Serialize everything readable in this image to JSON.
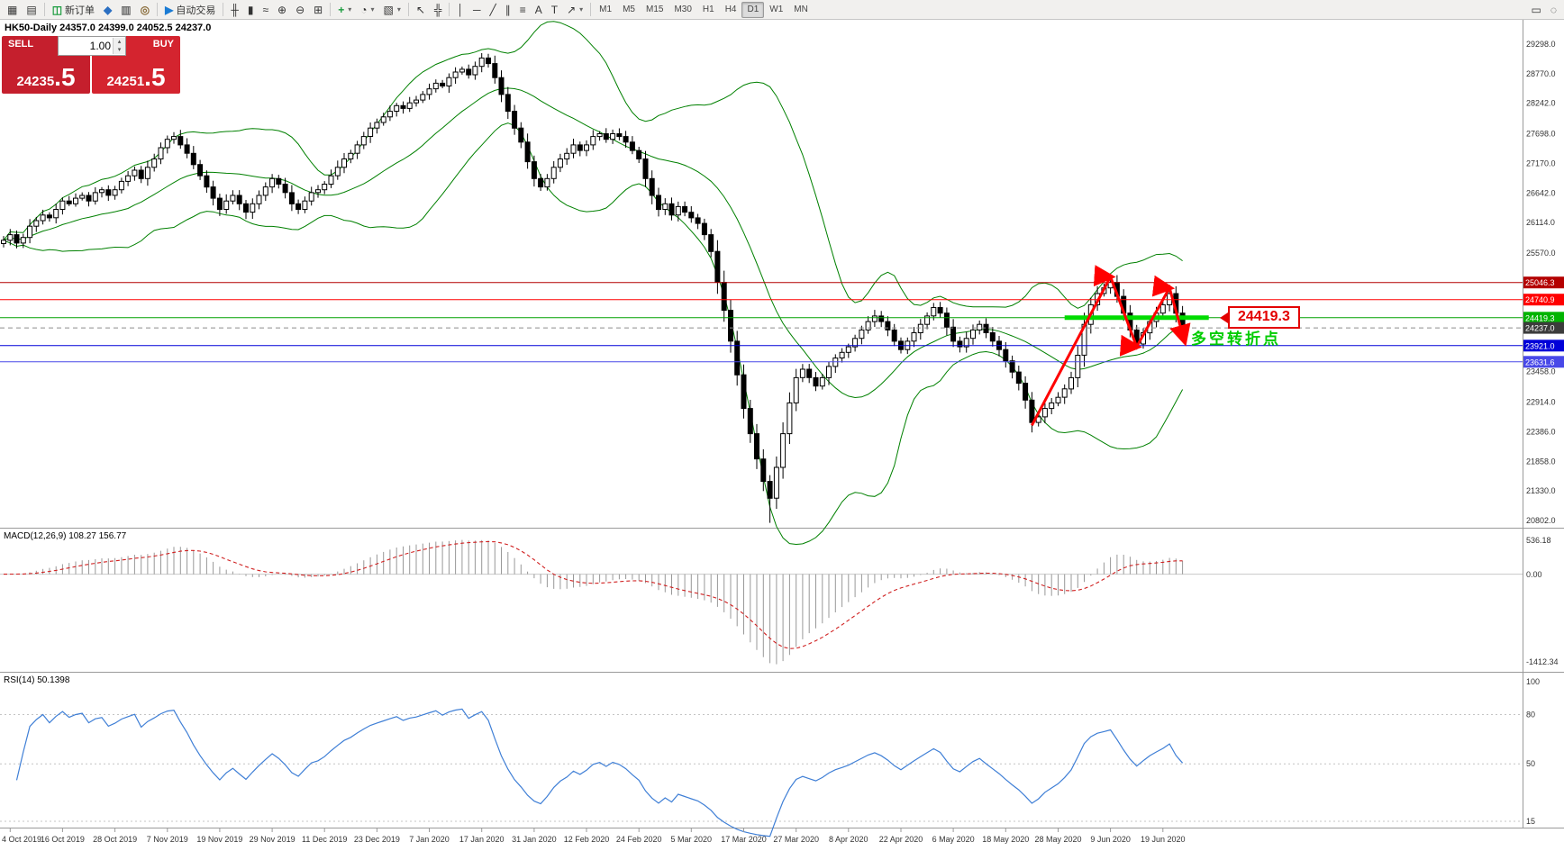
{
  "toolbar": {
    "left_items": [
      {
        "name": "new-chart-button",
        "glyph": "▦"
      },
      {
        "name": "profiles-button",
        "glyph": "▤"
      },
      {
        "type": "sep"
      },
      {
        "name": "new-order-button",
        "glyph": "◫",
        "glyph_color": "#1a9c3e",
        "label": "新订单"
      },
      {
        "name": "market-watch-button",
        "glyph": "◆",
        "glyph_color": "#2b6fc2"
      },
      {
        "name": "data-window-button",
        "glyph": "▥",
        "glyph_color": "#6d6d6d"
      },
      {
        "name": "strategy-tester-button",
        "glyph": "◎",
        "glyph_color": "#8a6d3b"
      },
      {
        "type": "sep"
      },
      {
        "name": "autotrade-button",
        "glyph": "▶",
        "glyph_color": "#1a7bd4",
        "label": "自动交易"
      },
      {
        "type": "sep"
      },
      {
        "name": "bar-chart-button",
        "glyph": "╫"
      },
      {
        "name": "candlestick-chart-button",
        "glyph": "▮"
      },
      {
        "name": "line-chart-button",
        "glyph": "≈"
      },
      {
        "name": "zoom-in-button",
        "glyph": "⊕"
      },
      {
        "name": "zoom-out-button",
        "glyph": "⊖"
      },
      {
        "name": "tile-windows-button",
        "glyph": "⊞"
      },
      {
        "type": "sep"
      },
      {
        "name": "indicators-button",
        "glyph": "+",
        "glyph_color": "#1a9c3e",
        "caret": true
      },
      {
        "name": "periods-button",
        "glyph": "◔",
        "caret": true
      },
      {
        "name": "templates-button",
        "glyph": "▧",
        "caret": true
      },
      {
        "type": "sep"
      },
      {
        "name": "cursor-button",
        "glyph": "↖"
      },
      {
        "name": "crosshair-button",
        "glyph": "╬"
      },
      {
        "type": "sep"
      },
      {
        "name": "vertical-line-button",
        "glyph": "│"
      },
      {
        "name": "horizontal-line-button",
        "glyph": "─"
      },
      {
        "name": "trendline-button",
        "glyph": "╱"
      },
      {
        "name": "equidistant-channel-button",
        "glyph": "∥"
      },
      {
        "name": "fibonacci-button",
        "glyph": "≡"
      },
      {
        "name": "text-button",
        "glyph": "A"
      },
      {
        "name": "text-label-button",
        "glyph": "T"
      },
      {
        "name": "arrows-button",
        "glyph": "↗",
        "caret": true
      },
      {
        "type": "sep"
      }
    ],
    "timeframes": [
      "M1",
      "M5",
      "M15",
      "M30",
      "H1",
      "H4",
      "D1",
      "W1",
      "MN"
    ],
    "active_timeframe": "D1",
    "right_items": [
      {
        "name": "window-tool-button",
        "glyph": "▭"
      },
      {
        "name": "object-tool-button",
        "glyph": "◌"
      }
    ]
  },
  "chart_header": {
    "text": "HK50-Daily 24357.0 24399.0 24052.5 24237.0"
  },
  "trade_panel": {
    "sell_label": "SELL",
    "buy_label": "BUY",
    "volume": "1.00",
    "sell_price_int": "24235",
    "sell_price_frac": ".5",
    "buy_price_int": "24251",
    "buy_price_frac": ".5"
  },
  "annotations": {
    "price_tag": "24419.3",
    "turning_point_text": "多空转折点",
    "zigzag_color": "#ff0000",
    "zigzag_points": [
      [
        157,
        22500
      ],
      [
        169,
        25150
      ],
      [
        173,
        23900
      ],
      [
        178,
        24950
      ],
      [
        180.3,
        24000
      ]
    ],
    "thick_line": {
      "price": 24419.3,
      "i1": 162,
      "i2": 184,
      "color": "#00dc00"
    }
  },
  "price_axis": {
    "gray_labels": [
      29298.0,
      28770.0,
      28242.0,
      27698.0,
      27170.0,
      26642.0,
      26114.0,
      25570.0,
      23458.0,
      22914.0,
      22386.0,
      21858.0,
      21330.0,
      20802.0
    ],
    "line_labels": [
      {
        "text": "25046.3",
        "price": 25046.3,
        "bg": "#b40000",
        "line": "#b40000",
        "dashed": false
      },
      {
        "text": "24740.9",
        "price": 24740.9,
        "bg": "#ff0000",
        "line": "#ff0000",
        "dashed": false
      },
      {
        "text": "24419.3",
        "price": 24419.3,
        "bg": "#00b400",
        "line": "#00a000",
        "dashed": false
      },
      {
        "text": "24237.0",
        "price": 24237.0,
        "bg": "#3c3c3c",
        "line": "#8c8c8c",
        "dashed": true
      },
      {
        "text": "23921.0",
        "price": 23921.0,
        "bg": "#0000d8",
        "line": "#0000d8",
        "dashed": false
      },
      {
        "text": "23631.6",
        "price": 23631.6,
        "bg": "#4848e8",
        "line": "#4848e8",
        "dashed": false
      }
    ]
  },
  "macd": {
    "header": "MACD(12,26,9) 108.27 156.77",
    "axis_labels": [
      "536.18",
      "0.00",
      "-1412.34"
    ],
    "histogram_color": "#989898",
    "signal_color": "#d02020"
  },
  "rsi": {
    "header": "RSI(14) 50.1398",
    "axis_labels": [
      "100",
      "80",
      "50",
      "15"
    ],
    "line_color": "#3f7fd6"
  },
  "date_axis": [
    {
      "i": 1,
      "t": "4 Oct 2019"
    },
    {
      "i": 9,
      "t": "16 Oct 2019"
    },
    {
      "i": 17,
      "t": "28 Oct 2019"
    },
    {
      "i": 25,
      "t": "7 Nov 2019"
    },
    {
      "i": 33,
      "t": "19 Nov 2019"
    },
    {
      "i": 41,
      "t": "29 Nov 2019"
    },
    {
      "i": 49,
      "t": "11 Dec 2019"
    },
    {
      "i": 57,
      "t": "23 Dec 2019"
    },
    {
      "i": 65,
      "t": "7 Jan 2020"
    },
    {
      "i": 73,
      "t": "17 Jan 2020"
    },
    {
      "i": 81,
      "t": "31 Jan 2020"
    },
    {
      "i": 89,
      "t": "12 Feb 2020"
    },
    {
      "i": 97,
      "t": "24 Feb 2020"
    },
    {
      "i": 105,
      "t": "5 Mar 2020"
    },
    {
      "i": 113,
      "t": "17 Mar 2020"
    },
    {
      "i": 121,
      "t": "27 Mar 2020"
    },
    {
      "i": 129,
      "t": "8 Apr 2020"
    },
    {
      "i": 137,
      "t": "22 Apr 2020"
    },
    {
      "i": 145,
      "t": "6 May 2020"
    },
    {
      "i": 153,
      "t": "18 May 2020"
    },
    {
      "i": 161,
      "t": "28 May 2020"
    },
    {
      "i": 169,
      "t": "9 Jun 2020"
    },
    {
      "i": 177,
      "t": "19 Jun 2020"
    }
  ],
  "chart_data": {
    "type": "candlestick",
    "symbol": "HK50",
    "timeframe": "Daily",
    "open": 24357.0,
    "high": 24399.0,
    "low": 24052.5,
    "close": 24237.0,
    "bollinger_color": "#008000",
    "closes": [
      25800,
      25900,
      25750,
      25850,
      26050,
      26150,
      26250,
      26200,
      26350,
      26500,
      26450,
      26550,
      26600,
      26500,
      26650,
      26700,
      26600,
      26700,
      26850,
      26950,
      27050,
      26900,
      27100,
      27250,
      27450,
      27600,
      27650,
      27500,
      27350,
      27150,
      26950,
      26750,
      26550,
      26350,
      26500,
      26600,
      26450,
      26300,
      26450,
      26600,
      26750,
      26900,
      26800,
      26650,
      26450,
      26350,
      26500,
      26650,
      26700,
      26800,
      26950,
      27100,
      27250,
      27350,
      27500,
      27650,
      27800,
      27900,
      28000,
      28100,
      28200,
      28150,
      28250,
      28300,
      28400,
      28500,
      28600,
      28550,
      28700,
      28800,
      28850,
      28750,
      28900,
      29050,
      28950,
      28700,
      28400,
      28100,
      27800,
      27550,
      27200,
      26900,
      26750,
      26900,
      27100,
      27250,
      27350,
      27500,
      27400,
      27500,
      27650,
      27700,
      27600,
      27700,
      27650,
      27550,
      27400,
      27250,
      26900,
      26600,
      26350,
      26450,
      26250,
      26400,
      26300,
      26200,
      26100,
      25900,
      25600,
      25050,
      24550,
      24000,
      23400,
      22800,
      22350,
      21900,
      21500,
      21200,
      21750,
      22350,
      22900,
      23350,
      23500,
      23350,
      23200,
      23350,
      23550,
      23700,
      23800,
      23900,
      24050,
      24200,
      24350,
      24450,
      24350,
      24200,
      24000,
      23850,
      24000,
      24150,
      24300,
      24450,
      24600,
      24500,
      24250,
      24000,
      23900,
      24050,
      24200,
      24300,
      24150,
      24000,
      23850,
      23650,
      23450,
      23250,
      22950,
      22550,
      22650,
      22800,
      22900,
      23000,
      23150,
      23350,
      23750,
      24300,
      24650,
      24850,
      24950,
      25050,
      24800,
      24500,
      24200,
      23950,
      24150,
      24350,
      24500,
      24650,
      24850,
      24500,
      24237
    ]
  }
}
